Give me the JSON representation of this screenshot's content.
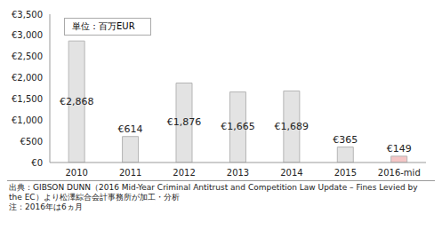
{
  "chart_data": {
    "type": "bar",
    "annotations": [
      "単位：百万EUR"
    ],
    "notes": [
      "出典：GIBSON DUNN（2016 Mid-Year Criminal Antitrust and Competition Law Update – Fines Levied by the EC）より松澤綜合会計事務所が加工・分析",
      "注：2016年は6ヵ月"
    ],
    "categories": [
      "2010",
      "2011",
      "2012",
      "2013",
      "2014",
      "2015",
      "2016-mid"
    ],
    "values": [
      2868,
      614,
      1876,
      1665,
      1689,
      365,
      149
    ],
    "value_labels": [
      "€2,868",
      "€614",
      "€1,876",
      "€1,665",
      "€1,689",
      "€365",
      "€149"
    ],
    "colors": [
      "#e3e3e3",
      "#e3e3e3",
      "#e3e3e3",
      "#e3e3e3",
      "#e3e3e3",
      "#e3e3e3",
      "#f5c6c6"
    ],
    "ylim": [
      0,
      3500
    ],
    "yticks": [
      {
        "value": 0,
        "label": "€0"
      },
      {
        "value": 500,
        "label": "€500"
      },
      {
        "value": 1000,
        "label": "€1,000"
      },
      {
        "value": 1500,
        "label": "€1,500"
      },
      {
        "value": 2000,
        "label": "€2,000"
      },
      {
        "value": 2500,
        "label": "€2,500"
      },
      {
        "value": 3000,
        "label": "€3,000"
      },
      {
        "value": 3500,
        "label": "€3,500"
      }
    ],
    "grid": false,
    "data_labels": true
  }
}
